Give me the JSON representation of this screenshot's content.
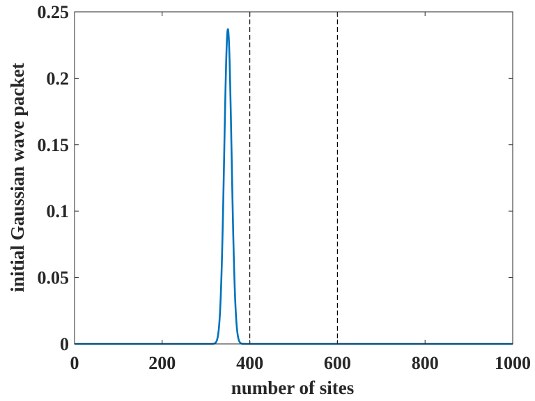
{
  "chart_data": {
    "type": "line",
    "title": "",
    "xlabel": "number of sites",
    "ylabel": "initial Gaussian wave packet",
    "xlim": [
      0,
      1000
    ],
    "ylim": [
      0,
      0.25
    ],
    "xticks": [
      0,
      200,
      400,
      600,
      800,
      1000
    ],
    "xtick_labels": [
      "0",
      "200",
      "400",
      "600",
      "800",
      "1000"
    ],
    "yticks": [
      0,
      0.05,
      0.1,
      0.15,
      0.2,
      0.25
    ],
    "ytick_labels": [
      "0",
      "0.05",
      "0.1",
      "0.15",
      "0.2",
      "0.25"
    ],
    "grid": false,
    "legend": "none",
    "series": [
      {
        "color": "#0072BD",
        "shape": "gaussian",
        "center": 350,
        "sigma": 8.4,
        "peak": 0.237,
        "x_range": [
          0,
          1000
        ]
      }
    ],
    "vertical_lines": [
      {
        "x": 400,
        "style": "dashed",
        "color": "#000000"
      },
      {
        "x": 600,
        "style": "dashed",
        "color": "#000000"
      }
    ]
  }
}
